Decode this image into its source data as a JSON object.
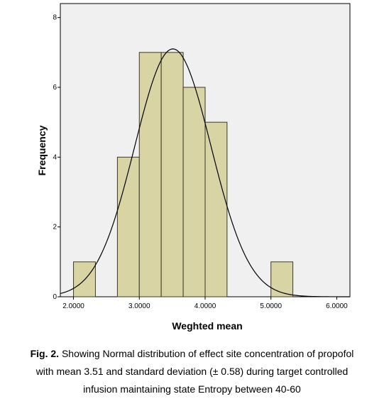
{
  "chart_data": {
    "type": "bar",
    "subtype": "histogram",
    "xlabel": "Weghted mean",
    "ylabel": "Frequency",
    "xlim": [
      1.8,
      6.2
    ],
    "ylim": [
      0,
      8.4
    ],
    "x_ticks": [
      {
        "value": 2.0,
        "label": "2.0000"
      },
      {
        "value": 3.0,
        "label": "3.0000"
      },
      {
        "value": 4.0,
        "label": "4.0000"
      },
      {
        "value": 5.0,
        "label": "5.0000"
      },
      {
        "value": 6.0,
        "label": "6.0000"
      }
    ],
    "y_ticks": [
      0,
      2,
      4,
      6,
      8
    ],
    "bins": [
      {
        "start": 2.0,
        "end": 2.333,
        "count": 1
      },
      {
        "start": 2.667,
        "end": 3.0,
        "count": 4
      },
      {
        "start": 3.0,
        "end": 3.333,
        "count": 7
      },
      {
        "start": 3.333,
        "end": 3.667,
        "count": 7
      },
      {
        "start": 3.667,
        "end": 4.0,
        "count": 6
      },
      {
        "start": 4.0,
        "end": 4.333,
        "count": 5
      },
      {
        "start": 5.0,
        "end": 5.333,
        "count": 1
      }
    ],
    "normal_curve": {
      "mean": 3.51,
      "sd": 0.58,
      "n": 31,
      "bin_width": 0.333
    },
    "bar_color": "#d8d4a4",
    "bar_edge": "#3a3a28",
    "plot_background": "#f0f0f0",
    "grid": false,
    "legend": "none"
  },
  "caption": {
    "fig_label": "Fig. 2.",
    "line1_rest": " Showing Normal distribution of effect site concentration of propofol",
    "line2": "with mean 3.51 and standard deviation (± 0.58) during target controlled",
    "line3": "infusion maintaining state Entropy between 40-60"
  }
}
